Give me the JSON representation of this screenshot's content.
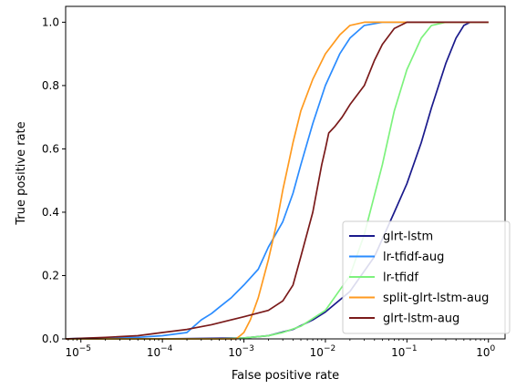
{
  "chart_data": {
    "type": "line",
    "title": "",
    "xlabel": "False positive rate",
    "ylabel": "True positive rate",
    "xscale": "log",
    "xlim": [
      6.5e-06,
      1.6
    ],
    "ylim": [
      0.0,
      1.05
    ],
    "x_ticks": [
      {
        "value": 1e-05,
        "base": "10",
        "exp": "−5"
      },
      {
        "value": 0.0001,
        "base": "10",
        "exp": "−4"
      },
      {
        "value": 0.001,
        "base": "10",
        "exp": "−3"
      },
      {
        "value": 0.01,
        "base": "10",
        "exp": "−2"
      },
      {
        "value": 0.1,
        "base": "10",
        "exp": "−1"
      },
      {
        "value": 1,
        "base": "10",
        "exp": "0"
      }
    ],
    "y_ticks": [
      {
        "value": 0.0,
        "label": "0.0"
      },
      {
        "value": 0.2,
        "label": "0.2"
      },
      {
        "value": 0.4,
        "label": "0.4"
      },
      {
        "value": 0.6,
        "label": "0.6"
      },
      {
        "value": 0.8,
        "label": "0.8"
      },
      {
        "value": 1.0,
        "label": "1.0"
      }
    ],
    "grid": false,
    "legend_position": "lower-right",
    "series": [
      {
        "name": "glrt-lstm",
        "color": "#1a1a8c",
        "points": [
          [
            6.5e-06,
            0.0
          ],
          [
            0.0001,
            0.0
          ],
          [
            0.001,
            0.003
          ],
          [
            0.002,
            0.01
          ],
          [
            0.004,
            0.03
          ],
          [
            0.007,
            0.06
          ],
          [
            0.01,
            0.085
          ],
          [
            0.02,
            0.15
          ],
          [
            0.04,
            0.26
          ],
          [
            0.07,
            0.4
          ],
          [
            0.1,
            0.49
          ],
          [
            0.15,
            0.62
          ],
          [
            0.2,
            0.73
          ],
          [
            0.3,
            0.87
          ],
          [
            0.4,
            0.95
          ],
          [
            0.5,
            0.99
          ],
          [
            0.6,
            1.0
          ],
          [
            1.0,
            1.0
          ]
        ]
      },
      {
        "name": "lr-tfidf-aug",
        "color": "#2b8cff",
        "points": [
          [
            6.5e-06,
            0.0
          ],
          [
            1e-05,
            0.002
          ],
          [
            5e-05,
            0.005
          ],
          [
            0.0001,
            0.01
          ],
          [
            0.0002,
            0.02
          ],
          [
            0.0003,
            0.06
          ],
          [
            0.0004,
            0.08
          ],
          [
            0.0005,
            0.1
          ],
          [
            0.0007,
            0.13
          ],
          [
            0.001,
            0.17
          ],
          [
            0.0015,
            0.22
          ],
          [
            0.002,
            0.29
          ],
          [
            0.003,
            0.37
          ],
          [
            0.004,
            0.46
          ],
          [
            0.005,
            0.55
          ],
          [
            0.007,
            0.68
          ],
          [
            0.01,
            0.8
          ],
          [
            0.015,
            0.9
          ],
          [
            0.02,
            0.95
          ],
          [
            0.03,
            0.99
          ],
          [
            0.05,
            1.0
          ],
          [
            1.0,
            1.0
          ]
        ]
      },
      {
        "name": "lr-tfidf",
        "color": "#7df27d",
        "points": [
          [
            6.5e-06,
            0.0
          ],
          [
            0.0005,
            0.0
          ],
          [
            0.001,
            0.003
          ],
          [
            0.002,
            0.01
          ],
          [
            0.003,
            0.02
          ],
          [
            0.005,
            0.04
          ],
          [
            0.01,
            0.09
          ],
          [
            0.02,
            0.2
          ],
          [
            0.03,
            0.33
          ],
          [
            0.05,
            0.55
          ],
          [
            0.07,
            0.72
          ],
          [
            0.1,
            0.85
          ],
          [
            0.15,
            0.95
          ],
          [
            0.2,
            0.99
          ],
          [
            0.3,
            1.0
          ],
          [
            1.0,
            1.0
          ]
        ]
      },
      {
        "name": "split-glrt-lstm-aug",
        "color": "#ff9a1f",
        "points": [
          [
            6.5e-06,
            0.0
          ],
          [
            0.0008,
            0.0
          ],
          [
            0.0009,
            0.01
          ],
          [
            0.001,
            0.02
          ],
          [
            0.0012,
            0.06
          ],
          [
            0.0015,
            0.13
          ],
          [
            0.002,
            0.25
          ],
          [
            0.0025,
            0.36
          ],
          [
            0.003,
            0.47
          ],
          [
            0.0035,
            0.55
          ],
          [
            0.004,
            0.62
          ],
          [
            0.005,
            0.72
          ],
          [
            0.007,
            0.82
          ],
          [
            0.01,
            0.9
          ],
          [
            0.015,
            0.96
          ],
          [
            0.02,
            0.99
          ],
          [
            0.03,
            1.0
          ],
          [
            1.0,
            1.0
          ]
        ]
      },
      {
        "name": "glrt-lstm-aug",
        "color": "#7a1a1a",
        "points": [
          [
            6.5e-06,
            0.0
          ],
          [
            2e-05,
            0.005
          ],
          [
            5e-05,
            0.01
          ],
          [
            0.0001,
            0.02
          ],
          [
            0.0002,
            0.03
          ],
          [
            0.0004,
            0.045
          ],
          [
            0.0007,
            0.06
          ],
          [
            0.001,
            0.07
          ],
          [
            0.002,
            0.09
          ],
          [
            0.003,
            0.12
          ],
          [
            0.004,
            0.17
          ],
          [
            0.005,
            0.26
          ],
          [
            0.007,
            0.4
          ],
          [
            0.009,
            0.55
          ],
          [
            0.01,
            0.6
          ],
          [
            0.011,
            0.65
          ],
          [
            0.013,
            0.67
          ],
          [
            0.016,
            0.7
          ],
          [
            0.02,
            0.74
          ],
          [
            0.03,
            0.8
          ],
          [
            0.04,
            0.88
          ],
          [
            0.05,
            0.93
          ],
          [
            0.07,
            0.98
          ],
          [
            0.1,
            1.0
          ],
          [
            1.0,
            1.0
          ]
        ]
      }
    ]
  }
}
